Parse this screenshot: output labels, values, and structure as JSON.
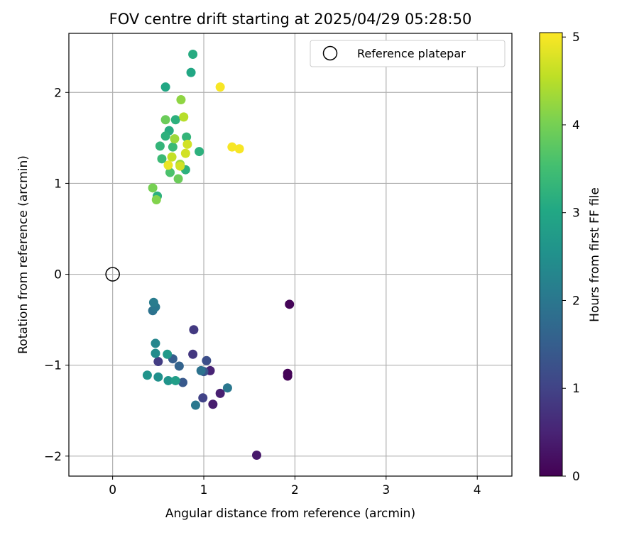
{
  "chart_data": {
    "type": "scatter",
    "title": "FOV centre drift starting at 2025/04/29 05:28:50",
    "xlabel": "Angular distance from reference (arcmin)",
    "ylabel": "Rotation from reference (arcmin)",
    "xlim": [
      -0.48,
      4.38
    ],
    "ylim": [
      -2.22,
      2.65
    ],
    "xticks": [
      "0",
      "1",
      "2",
      "3",
      "4"
    ],
    "yticks": [
      "−2",
      "−1",
      "0",
      "1",
      "2"
    ],
    "grid": true,
    "legend": {
      "position": "top-right",
      "entries": [
        "Reference platepar"
      ]
    },
    "reference_point": {
      "x": 0,
      "y": 0
    },
    "colorbar": {
      "label": "Hours from first FF file",
      "colormap": "viridis",
      "range": [
        0,
        5.05
      ],
      "ticks": [
        "0",
        "1",
        "2",
        "3",
        "4",
        "5"
      ]
    },
    "points": [
      {
        "x": 1.94,
        "y": -0.33,
        "c": 0.05
      },
      {
        "x": 1.92,
        "y": -1.09,
        "c": 0.05
      },
      {
        "x": 1.92,
        "y": -1.12,
        "c": 0.05
      },
      {
        "x": 1.58,
        "y": -1.99,
        "c": 0.35
      },
      {
        "x": 1.1,
        "y": -1.43,
        "c": 0.4
      },
      {
        "x": 1.18,
        "y": -1.31,
        "c": 0.45
      },
      {
        "x": 1.07,
        "y": -1.06,
        "c": 0.5
      },
      {
        "x": 0.89,
        "y": -0.61,
        "c": 0.85
      },
      {
        "x": 0.88,
        "y": -0.88,
        "c": 0.8
      },
      {
        "x": 0.5,
        "y": -0.96,
        "c": 0.9
      },
      {
        "x": 0.99,
        "y": -1.36,
        "c": 1.0
      },
      {
        "x": 1.03,
        "y": -0.95,
        "c": 1.2
      },
      {
        "x": 1.0,
        "y": -1.07,
        "c": 1.3
      },
      {
        "x": 0.77,
        "y": -1.19,
        "c": 1.4
      },
      {
        "x": 0.66,
        "y": -0.93,
        "c": 1.5
      },
      {
        "x": 0.73,
        "y": -1.01,
        "c": 1.6
      },
      {
        "x": 1.26,
        "y": -1.25,
        "c": 2.0
      },
      {
        "x": 0.91,
        "y": -1.44,
        "c": 2.0
      },
      {
        "x": 0.97,
        "y": -1.06,
        "c": 1.9
      },
      {
        "x": 0.44,
        "y": -0.4,
        "c": 1.9
      },
      {
        "x": 0.47,
        "y": -0.36,
        "c": 2.0
      },
      {
        "x": 0.45,
        "y": -0.31,
        "c": 2.1
      },
      {
        "x": 0.47,
        "y": -0.76,
        "c": 2.3
      },
      {
        "x": 0.47,
        "y": -0.87,
        "c": 2.4
      },
      {
        "x": 0.38,
        "y": -1.11,
        "c": 2.6
      },
      {
        "x": 0.5,
        "y": -1.13,
        "c": 2.5
      },
      {
        "x": 0.61,
        "y": -1.17,
        "c": 2.6
      },
      {
        "x": 0.6,
        "y": -0.88,
        "c": 2.7
      },
      {
        "x": 0.69,
        "y": -1.17,
        "c": 2.8
      },
      {
        "x": 0.88,
        "y": 2.42,
        "c": 3.1
      },
      {
        "x": 0.86,
        "y": 2.22,
        "c": 3.0
      },
      {
        "x": 0.58,
        "y": 2.06,
        "c": 3.0
      },
      {
        "x": 0.69,
        "y": 1.7,
        "c": 3.2
      },
      {
        "x": 0.62,
        "y": 1.58,
        "c": 3.1
      },
      {
        "x": 0.58,
        "y": 1.52,
        "c": 3.2
      },
      {
        "x": 0.81,
        "y": 1.51,
        "c": 3.3
      },
      {
        "x": 0.52,
        "y": 1.41,
        "c": 3.3
      },
      {
        "x": 0.66,
        "y": 1.4,
        "c": 3.4
      },
      {
        "x": 0.95,
        "y": 1.35,
        "c": 3.2
      },
      {
        "x": 0.54,
        "y": 1.27,
        "c": 3.4
      },
      {
        "x": 0.8,
        "y": 1.15,
        "c": 3.2
      },
      {
        "x": 0.63,
        "y": 1.12,
        "c": 3.6
      },
      {
        "x": 0.72,
        "y": 1.05,
        "c": 3.9
      },
      {
        "x": 0.49,
        "y": 0.86,
        "c": 3.2
      },
      {
        "x": 0.44,
        "y": 0.95,
        "c": 4.0
      },
      {
        "x": 0.48,
        "y": 0.82,
        "c": 4.1
      },
      {
        "x": 0.58,
        "y": 1.7,
        "c": 3.9
      },
      {
        "x": 0.75,
        "y": 1.92,
        "c": 4.2
      },
      {
        "x": 0.78,
        "y": 1.73,
        "c": 4.5
      },
      {
        "x": 0.68,
        "y": 1.49,
        "c": 4.3
      },
      {
        "x": 0.74,
        "y": 1.21,
        "c": 4.3
      },
      {
        "x": 0.8,
        "y": 1.33,
        "c": 4.7
      },
      {
        "x": 0.82,
        "y": 1.43,
        "c": 4.7
      },
      {
        "x": 0.65,
        "y": 1.29,
        "c": 4.6
      },
      {
        "x": 0.61,
        "y": 1.2,
        "c": 4.9
      },
      {
        "x": 0.74,
        "y": 1.19,
        "c": 4.7
      },
      {
        "x": 1.18,
        "y": 2.06,
        "c": 5.0
      },
      {
        "x": 1.31,
        "y": 1.4,
        "c": 5.0
      },
      {
        "x": 1.39,
        "y": 1.38,
        "c": 5.0
      }
    ]
  }
}
